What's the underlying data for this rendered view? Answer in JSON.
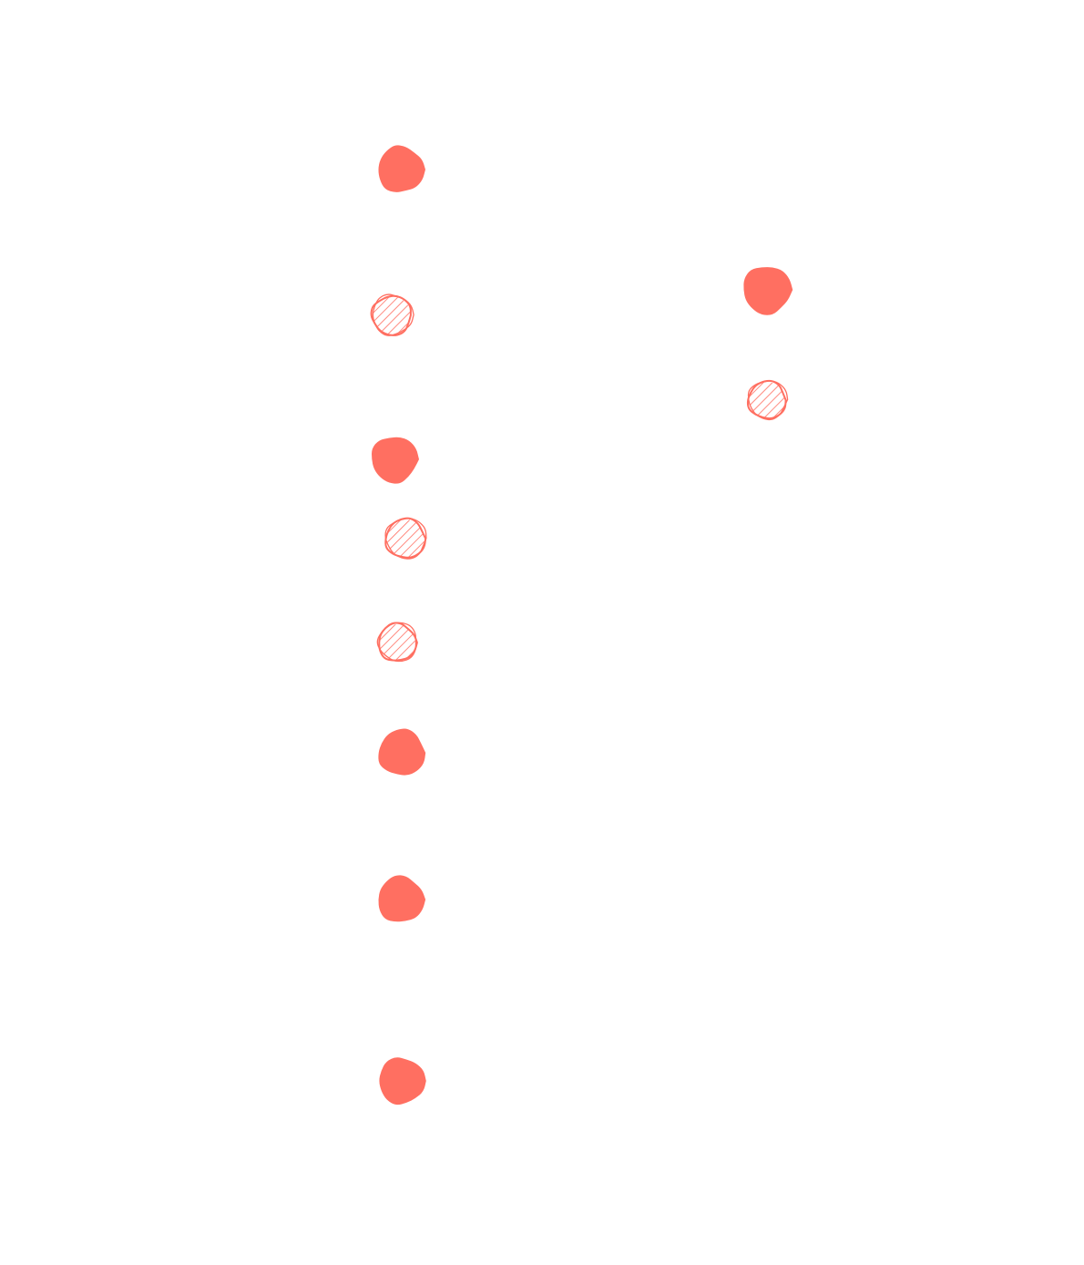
{
  "colors": {
    "background": "#ffffff",
    "marker": "#ff6f61"
  },
  "legend": [],
  "markers": [
    {
      "id": "dot-1",
      "style": "solid"
    },
    {
      "id": "dot-2",
      "style": "hatched"
    },
    {
      "id": "dot-3",
      "style": "solid"
    },
    {
      "id": "dot-4",
      "style": "hatched"
    },
    {
      "id": "dot-5",
      "style": "hatched"
    },
    {
      "id": "dot-6",
      "style": "solid"
    },
    {
      "id": "dot-7",
      "style": "solid"
    },
    {
      "id": "dot-8",
      "style": "solid"
    },
    {
      "id": "dot-9",
      "style": "solid"
    },
    {
      "id": "dot-10",
      "style": "hatched"
    }
  ]
}
